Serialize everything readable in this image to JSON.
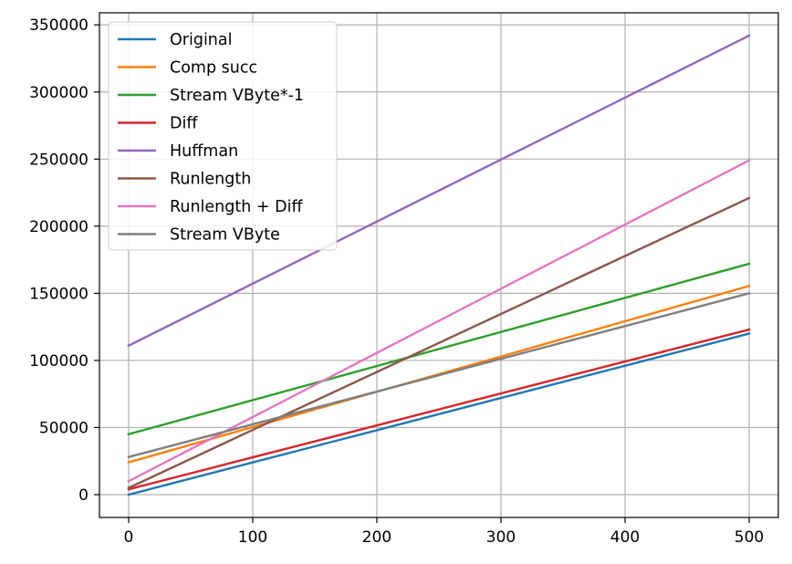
{
  "chart_data": {
    "type": "line",
    "title": "",
    "xlabel": "",
    "ylabel": "",
    "xlim": [
      -23.5,
      523.5
    ],
    "ylim": [
      -17000,
      359000
    ],
    "x": [
      0,
      500
    ],
    "xticks": [
      0,
      100,
      200,
      300,
      400,
      500
    ],
    "yticks": [
      0,
      50000,
      100000,
      150000,
      200000,
      250000,
      300000,
      350000
    ],
    "grid": true,
    "legend_position": "upper-left",
    "series": [
      {
        "name": "Original",
        "color": "#1f77b4",
        "values": [
          0,
          120000
        ]
      },
      {
        "name": "Comp succ",
        "color": "#ff7f0e",
        "values": [
          24000,
          155500
        ]
      },
      {
        "name": "Stream VByte*-1",
        "color": "#2ca02c",
        "values": [
          45000,
          172000
        ]
      },
      {
        "name": "Diff",
        "color": "#d62728",
        "values": [
          4000,
          123000
        ]
      },
      {
        "name": "Huffman",
        "color": "#9467bd",
        "values": [
          111000,
          342000
        ]
      },
      {
        "name": "Runlength",
        "color": "#8c564b",
        "values": [
          5000,
          221000
        ]
      },
      {
        "name": "Runlength + Diff",
        "color": "#e377c2",
        "values": [
          10000,
          249000
        ]
      },
      {
        "name": "Stream VByte",
        "color": "#7f7f7f",
        "values": [
          28000,
          150000
        ]
      }
    ]
  }
}
